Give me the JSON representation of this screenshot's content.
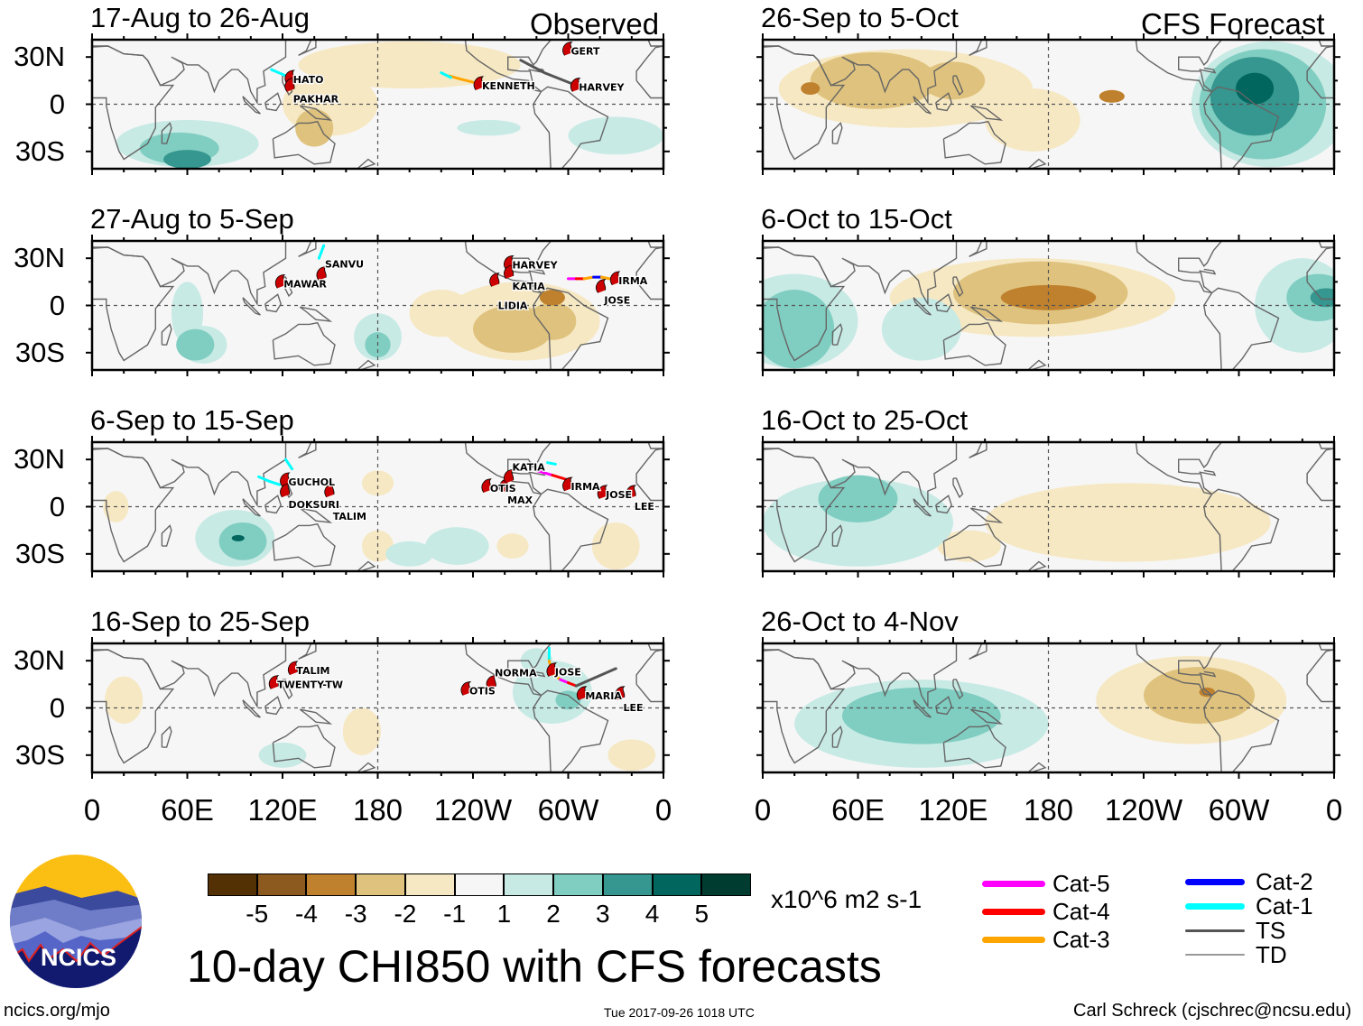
{
  "header": {
    "observed_label": "Observed",
    "forecast_label": "CFS Forecast"
  },
  "lat_labels": [
    "30N",
    "0",
    "30S"
  ],
  "lon_labels": [
    "0",
    "60E",
    "120E",
    "180",
    "120W",
    "60W",
    "0"
  ],
  "colors": {
    "levels": {
      "-5": "#543005",
      "-4": "#8c5a1f",
      "-3": "#bf812d",
      "-2": "#dfc27d",
      "-1": "#f6e8c3",
      "1": "#c7eae5",
      "2": "#80cdc1",
      "3": "#35978f",
      "4": "#01665e",
      "5": "#003c30"
    },
    "track": {
      "Cat-5": "#ff00ff",
      "Cat-4": "#ff0000",
      "Cat-3": "#ffa500",
      "Cat-2": "#0000ff",
      "Cat-1": "#00ffff",
      "TS": "#555555",
      "TD": "#999999"
    },
    "storm_marker": "#cc0000"
  },
  "panels": [
    {
      "title": "17-Aug to 26-Aug",
      "type": "observed",
      "anomalies": [
        {
          "lon": 200,
          "lat": 25,
          "rlon": 70,
          "rlat": 15,
          "level": -1
        },
        {
          "lon": 150,
          "lat": 0,
          "rlon": 30,
          "rlat": 20,
          "level": -1
        },
        {
          "lon": 140,
          "lat": -15,
          "rlon": 12,
          "rlat": 12,
          "level": -2
        },
        {
          "lon": 60,
          "lat": -25,
          "rlon": 45,
          "rlat": 15,
          "level": 1
        },
        {
          "lon": 330,
          "lat": -20,
          "rlon": 30,
          "rlat": 12,
          "level": 1
        },
        {
          "lon": 250,
          "lat": -15,
          "rlon": 20,
          "rlat": 5,
          "level": 1
        },
        {
          "lon": 55,
          "lat": -28,
          "rlon": 25,
          "rlat": 10,
          "level": 2
        },
        {
          "lon": 60,
          "lat": -35,
          "rlon": 15,
          "rlat": 6,
          "level": 3
        }
      ],
      "storms": [
        {
          "name": "HATO",
          "lon": 125,
          "lat": 17,
          "letter": "H"
        },
        {
          "name": "PAKHAR",
          "lon": 125,
          "lat": 12,
          "letter": "P"
        },
        {
          "name": "KENNETH",
          "lon": 244,
          "lat": 13,
          "letter": "K"
        },
        {
          "name": "HARVEY",
          "lon": 305,
          "lat": 12,
          "letter": "H"
        },
        {
          "name": "GERT",
          "lon": 300,
          "lat": 35,
          "letter": ""
        }
      ],
      "tracks": [
        {
          "cat": "Cat-1",
          "points": [
            [
              113,
              22
            ],
            [
              120,
              19
            ],
            [
              125,
              17
            ]
          ]
        },
        {
          "cat": "Cat-3",
          "points": [
            [
              225,
              18
            ],
            [
              232,
              16
            ],
            [
              240,
              14
            ]
          ]
        },
        {
          "cat": "Cat-1",
          "points": [
            [
              220,
              20
            ],
            [
              226,
              17
            ]
          ]
        },
        {
          "cat": "TS",
          "points": [
            [
              305,
              12
            ],
            [
              285,
              20
            ],
            [
              270,
              28
            ]
          ]
        }
      ]
    },
    {
      "title": "27-Aug to 5-Sep",
      "type": "observed",
      "anomalies": [
        {
          "lon": 270,
          "lat": -10,
          "rlon": 50,
          "rlat": 25,
          "level": -1
        },
        {
          "lon": 220,
          "lat": -5,
          "rlon": 20,
          "rlat": 15,
          "level": -1
        },
        {
          "lon": 265,
          "lat": -15,
          "rlon": 25,
          "rlat": 15,
          "level": -2
        },
        {
          "lon": 290,
          "lat": -10,
          "rlon": 15,
          "rlat": 12,
          "level": -2
        },
        {
          "lon": 290,
          "lat": 5,
          "rlon": 8,
          "rlat": 5,
          "level": -3
        },
        {
          "lon": 60,
          "lat": -5,
          "rlon": 10,
          "rlat": 20,
          "level": 1
        },
        {
          "lon": 70,
          "lat": -25,
          "rlon": 15,
          "rlat": 12,
          "level": 1
        },
        {
          "lon": 180,
          "lat": -20,
          "rlon": 15,
          "rlat": 15,
          "level": 1
        },
        {
          "lon": 65,
          "lat": -25,
          "rlon": 12,
          "rlat": 10,
          "level": 2
        },
        {
          "lon": 180,
          "lat": -25,
          "rlon": 8,
          "rlat": 8,
          "level": 2
        }
      ],
      "storms": [
        {
          "name": "MAWAR",
          "lon": 119,
          "lat": 15,
          "letter": "M"
        },
        {
          "name": "SANVU",
          "lon": 145,
          "lat": 20,
          "letter": "S"
        },
        {
          "name": "HARVEY",
          "lon": 263,
          "lat": 27,
          "letter": "H"
        },
        {
          "name": "KATIA",
          "lon": 263,
          "lat": 21,
          "letter": "K"
        },
        {
          "name": "LIDIA",
          "lon": 254,
          "lat": 16,
          "letter": "L"
        },
        {
          "name": "IRMA",
          "lon": 330,
          "lat": 17,
          "letter": "I"
        },
        {
          "name": "JOSE",
          "lon": 321,
          "lat": 12,
          "letter": "J"
        }
      ],
      "tracks": [
        {
          "cat": "Cat-1",
          "points": [
            [
              143,
              30
            ],
            [
              146,
              38
            ]
          ]
        },
        {
          "cat": "Cat-5",
          "points": [
            [
              300,
              17
            ],
            [
              305,
              17
            ]
          ]
        },
        {
          "cat": "Cat-4",
          "points": [
            [
              305,
              17
            ],
            [
              310,
              17
            ]
          ]
        },
        {
          "cat": "Cat-3",
          "points": [
            [
              310,
              17
            ],
            [
              316,
              18
            ]
          ]
        },
        {
          "cat": "Cat-2",
          "points": [
            [
              316,
              18
            ],
            [
              321,
              18
            ]
          ]
        },
        {
          "cat": "Cat-3",
          "points": [
            [
              321,
              18
            ],
            [
              326,
              17
            ]
          ]
        }
      ]
    },
    {
      "title": "6-Sep to 15-Sep",
      "type": "observed",
      "anomalies": [
        {
          "lon": 180,
          "lat": 15,
          "rlon": 10,
          "rlat": 8,
          "level": -1
        },
        {
          "lon": 180,
          "lat": -25,
          "rlon": 10,
          "rlat": 10,
          "level": -1
        },
        {
          "lon": 330,
          "lat": -25,
          "rlon": 15,
          "rlat": 15,
          "level": -1
        },
        {
          "lon": 265,
          "lat": -25,
          "rlon": 10,
          "rlat": 8,
          "level": -1
        },
        {
          "lon": 15,
          "lat": 0,
          "rlon": 8,
          "rlat": 10,
          "level": -1
        },
        {
          "lon": 90,
          "lat": -20,
          "rlon": 25,
          "rlat": 18,
          "level": 1
        },
        {
          "lon": 230,
          "lat": -25,
          "rlon": 20,
          "rlat": 12,
          "level": 1
        },
        {
          "lon": 200,
          "lat": -30,
          "rlon": 15,
          "rlat": 8,
          "level": 1
        },
        {
          "lon": 95,
          "lat": -22,
          "rlon": 15,
          "rlat": 12,
          "level": 2
        },
        {
          "lon": 92,
          "lat": -20,
          "rlon": 4,
          "rlat": 2,
          "level": 4
        }
      ],
      "storms": [
        {
          "name": "GUCHOL",
          "lon": 122,
          "lat": 17,
          "letter": ""
        },
        {
          "name": "DOKSURI",
          "lon": 122,
          "lat": 10,
          "letter": ""
        },
        {
          "name": "TALIM",
          "lon": 150,
          "lat": 10,
          "letter": ""
        },
        {
          "name": "OTIS",
          "lon": 249,
          "lat": 13,
          "letter": "O"
        },
        {
          "name": "MAX",
          "lon": 260,
          "lat": 13,
          "letter": "M"
        },
        {
          "name": "KATIA",
          "lon": 263,
          "lat": 19,
          "letter": ""
        },
        {
          "name": "IRMA",
          "lon": 300,
          "lat": 14,
          "letter": ""
        },
        {
          "name": "JOSE",
          "lon": 322,
          "lat": 9,
          "letter": ""
        },
        {
          "name": "LEE",
          "lon": 340,
          "lat": 9,
          "letter": "L"
        }
      ],
      "tracks": [
        {
          "cat": "Cat-1",
          "points": [
            [
              105,
              19
            ],
            [
              112,
              16
            ],
            [
              118,
              14
            ]
          ]
        },
        {
          "cat": "Cat-1",
          "points": [
            [
              122,
              30
            ],
            [
              126,
              24
            ]
          ]
        },
        {
          "cat": "Cat-5",
          "points": [
            [
              280,
              23
            ],
            [
              290,
              20
            ]
          ]
        },
        {
          "cat": "Cat-4",
          "points": [
            [
              290,
              20
            ],
            [
              300,
              17
            ]
          ]
        },
        {
          "cat": "Cat-1",
          "points": [
            [
              287,
              28
            ],
            [
              292,
              27
            ]
          ]
        }
      ]
    },
    {
      "title": "16-Sep to 25-Sep",
      "type": "observed",
      "anomalies": [
        {
          "lon": 170,
          "lat": -15,
          "rlon": 12,
          "rlat": 15,
          "level": -1
        },
        {
          "lon": 20,
          "lat": 5,
          "rlon": 12,
          "rlat": 15,
          "level": -1
        },
        {
          "lon": 340,
          "lat": -30,
          "rlon": 15,
          "rlat": 10,
          "level": -1
        },
        {
          "lon": 290,
          "lat": 10,
          "rlon": 25,
          "rlat": 20,
          "level": 1
        },
        {
          "lon": 120,
          "lat": -30,
          "rlon": 15,
          "rlat": 8,
          "level": 1
        },
        {
          "lon": 280,
          "lat": 30,
          "rlon": 10,
          "rlat": 8,
          "level": 1
        },
        {
          "lon": 300,
          "lat": 5,
          "rlon": 8,
          "rlat": 6,
          "level": 2
        }
      ],
      "storms": [
        {
          "name": "TALIM",
          "lon": 127,
          "lat": 25,
          "letter": ""
        },
        {
          "name": "TWENTY-TW",
          "lon": 115,
          "lat": 16,
          "letter": "20"
        },
        {
          "name": "OTIS",
          "lon": 236,
          "lat": 12,
          "letter": ""
        },
        {
          "name": "NORMA",
          "lon": 252,
          "lat": 16,
          "letter": "N"
        },
        {
          "name": "JOSE",
          "lon": 290,
          "lat": 24,
          "letter": ""
        },
        {
          "name": "MARIA",
          "lon": 309,
          "lat": 9,
          "letter": "M"
        },
        {
          "name": "LEE",
          "lon": 333,
          "lat": 9,
          "letter": ""
        }
      ],
      "tracks": [
        {
          "cat": "Cat-1",
          "points": [
            [
              288,
              38
            ],
            [
              288,
              30
            ]
          ]
        },
        {
          "cat": "Cat-3",
          "points": [
            [
              288,
              30
            ],
            [
              290,
              22
            ],
            [
              295,
              18
            ]
          ]
        },
        {
          "cat": "Cat-5",
          "points": [
            [
              295,
              18
            ],
            [
              300,
              16
            ]
          ]
        },
        {
          "cat": "Cat-4",
          "points": [
            [
              300,
              16
            ],
            [
              305,
              14
            ]
          ]
        },
        {
          "cat": "TS",
          "points": [
            [
              305,
              14
            ],
            [
              330,
              25
            ]
          ]
        }
      ]
    },
    {
      "title": "26-Sep to 5-Oct",
      "type": "forecast",
      "anomalies": [
        {
          "lon": 90,
          "lat": 10,
          "rlon": 80,
          "rlat": 25,
          "level": -1
        },
        {
          "lon": 170,
          "lat": -10,
          "rlon": 30,
          "rlat": 20,
          "level": -1
        },
        {
          "lon": 70,
          "lat": 15,
          "rlon": 40,
          "rlat": 18,
          "level": -2
        },
        {
          "lon": 120,
          "lat": 15,
          "rlon": 20,
          "rlat": 12,
          "level": -2
        },
        {
          "lon": 30,
          "lat": 10,
          "rlon": 6,
          "rlat": 4,
          "level": -3
        },
        {
          "lon": 220,
          "lat": 5,
          "rlon": 8,
          "rlat": 4,
          "level": -3
        },
        {
          "lon": 320,
          "lat": 0,
          "rlon": 50,
          "rlat": 40,
          "level": 1
        },
        {
          "lon": 315,
          "lat": 0,
          "rlon": 40,
          "rlat": 35,
          "level": 2
        },
        {
          "lon": 310,
          "lat": 5,
          "rlon": 28,
          "rlat": 25,
          "level": 3
        },
        {
          "lon": 310,
          "lat": 10,
          "rlon": 12,
          "rlat": 10,
          "level": 4
        }
      ],
      "storms": [],
      "tracks": []
    },
    {
      "title": "6-Oct to 15-Oct",
      "type": "forecast",
      "anomalies": [
        {
          "lon": 170,
          "lat": 5,
          "rlon": 90,
          "rlat": 25,
          "level": -1
        },
        {
          "lon": 175,
          "lat": 8,
          "rlon": 55,
          "rlat": 20,
          "level": -2
        },
        {
          "lon": 180,
          "lat": 5,
          "rlon": 30,
          "rlat": 8,
          "level": -3
        },
        {
          "lon": 20,
          "lat": -10,
          "rlon": 40,
          "rlat": 30,
          "level": 1
        },
        {
          "lon": 340,
          "lat": 0,
          "rlon": 30,
          "rlat": 30,
          "level": 1
        },
        {
          "lon": 100,
          "lat": -15,
          "rlon": 25,
          "rlat": 20,
          "level": 1
        },
        {
          "lon": 20,
          "lat": -15,
          "rlon": 25,
          "rlat": 25,
          "level": 2
        },
        {
          "lon": 350,
          "lat": 5,
          "rlon": 20,
          "rlat": 15,
          "level": 2
        },
        {
          "lon": 355,
          "lat": 5,
          "rlon": 10,
          "rlat": 6,
          "level": 3
        }
      ],
      "storms": [],
      "tracks": []
    },
    {
      "title": "16-Oct to 25-Oct",
      "type": "forecast",
      "anomalies": [
        {
          "lon": 230,
          "lat": -10,
          "rlon": 90,
          "rlat": 25,
          "level": -1
        },
        {
          "lon": 130,
          "lat": -25,
          "rlon": 20,
          "rlat": 10,
          "level": -1
        },
        {
          "lon": 60,
          "lat": -10,
          "rlon": 60,
          "rlat": 28,
          "level": 1
        },
        {
          "lon": 60,
          "lat": 5,
          "rlon": 25,
          "rlat": 15,
          "level": 2
        }
      ],
      "storms": [],
      "tracks": []
    },
    {
      "title": "26-Oct to 4-Nov",
      "type": "forecast",
      "anomalies": [
        {
          "lon": 270,
          "lat": 5,
          "rlon": 60,
          "rlat": 28,
          "level": -1
        },
        {
          "lon": 275,
          "lat": 8,
          "rlon": 35,
          "rlat": 18,
          "level": -2
        },
        {
          "lon": 280,
          "lat": 10,
          "rlon": 5,
          "rlat": 3,
          "level": -3
        },
        {
          "lon": 100,
          "lat": -10,
          "rlon": 80,
          "rlat": 28,
          "level": 1
        },
        {
          "lon": 100,
          "lat": -5,
          "rlon": 50,
          "rlat": 18,
          "level": 2
        }
      ],
      "storms": [],
      "tracks": []
    }
  ],
  "colorbar": {
    "labels": [
      "-5",
      "-4",
      "-3",
      "-2",
      "-1",
      "1",
      "2",
      "3",
      "4",
      "5"
    ],
    "units": "x10^6 m2 s-1"
  },
  "legend": [
    {
      "label": "Cat-5",
      "cat": "Cat-5"
    },
    {
      "label": "Cat-4",
      "cat": "Cat-4"
    },
    {
      "label": "Cat-3",
      "cat": "Cat-3"
    },
    {
      "label": "Cat-2",
      "cat": "Cat-2"
    },
    {
      "label": "Cat-1",
      "cat": "Cat-1"
    },
    {
      "label": "TS",
      "cat": "TS"
    },
    {
      "label": "TD",
      "cat": "TD"
    }
  ],
  "footer": {
    "title": "10-day CHI850 with CFS forecasts",
    "url": "ncics.org/mjo",
    "timestamp": "Tue 2017-09-26 1018 UTC",
    "author": "Carl Schreck (cjschrec@ncsu.edu)",
    "logo_text": "NCICS"
  }
}
